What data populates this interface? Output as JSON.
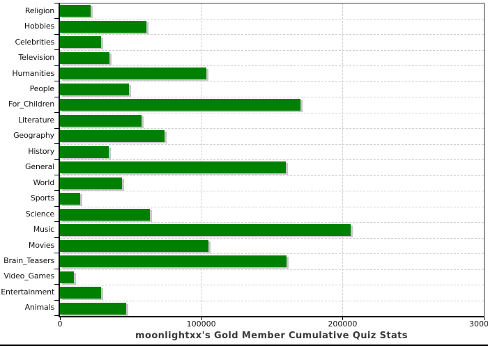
{
  "chart_data": {
    "type": "bar",
    "orientation": "horizontal",
    "title": "moonlightxx's Gold Member Cumulative Quiz Stats",
    "categories": [
      "Religion",
      "Hobbies",
      "Celebrities",
      "Television",
      "Humanities",
      "People",
      "For_Children",
      "Literature",
      "Geography",
      "History",
      "General",
      "World",
      "Sports",
      "Science",
      "Music",
      "Movies",
      "Brain_Teasers",
      "Video_Games",
      "Entertainment",
      "Animals"
    ],
    "values": [
      21500,
      61000,
      29000,
      35000,
      103500,
      49000,
      170000,
      57500,
      74000,
      34500,
      160000,
      44000,
      14500,
      63500,
      206000,
      105000,
      160500,
      10000,
      29000,
      47000
    ],
    "xlabel": "",
    "ylabel": "",
    "xlim": [
      0,
      300000
    ],
    "xticks": [
      {
        "label": "0",
        "value": 0
      },
      {
        "label": "100000",
        "value": 100000
      },
      {
        "label": "200000",
        "value": 200000
      },
      {
        "label": "300000",
        "value": 300000
      }
    ],
    "vgrid_values": [
      100000,
      200000
    ],
    "grid": "dashed",
    "legend": "none",
    "colors": {
      "bar": "#008000",
      "bar_shadow": "#c6c6c6",
      "grid": "#cfcfcf",
      "frame": "#3a3a3a",
      "axis": "#000000",
      "tick_text": "#111111",
      "title_text": "#3a3a3a",
      "background": "#ffffff"
    }
  }
}
